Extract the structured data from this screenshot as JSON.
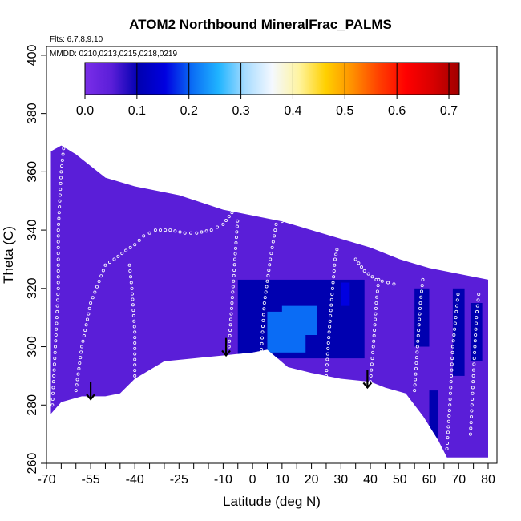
{
  "chart_data": {
    "type": "heatmap",
    "title": "ATOM2 Northbound MineralFrac_PALMS",
    "flights_note": "Flts: 6,7,8,9,10",
    "dates_note": "MMDD: 0210,0213,0215,0218,0219",
    "xlabel": "Latitude (deg N)",
    "ylabel": "Theta (C)",
    "xlim": [
      -70,
      83
    ],
    "ylim": [
      260,
      403
    ],
    "x_major_ticks": [
      -70,
      -55,
      -40,
      -25,
      -10,
      0,
      10,
      20,
      30,
      40,
      50,
      60,
      70,
      80
    ],
    "x_tick_labels": [
      "-70",
      "-55",
      "-40",
      "-25",
      "-10",
      "0",
      "10",
      "20",
      "30",
      "40",
      "50",
      "60",
      "70",
      "80"
    ],
    "x_minor_ticks": [
      -65,
      -60,
      -50,
      -45,
      -35,
      -30,
      -20,
      -15,
      -5,
      5,
      15,
      25,
      35,
      45,
      55,
      65,
      75
    ],
    "y_ticks": [
      260,
      280,
      300,
      320,
      340,
      360,
      380,
      400
    ],
    "y_tick_labels": [
      "260",
      "280",
      "300",
      "320",
      "340",
      "360",
      "380",
      "400"
    ],
    "colorbar": {
      "min": 0.0,
      "max": 0.72,
      "ticks": [
        0.0,
        0.1,
        0.2,
        0.3,
        0.4,
        0.5,
        0.6,
        0.7
      ],
      "tick_labels": [
        "0.0",
        "0.1",
        "0.2",
        "0.3",
        "0.4",
        "0.5",
        "0.6",
        "0.7"
      ],
      "colors": [
        "#7a2ee8",
        "#5a1ed8",
        "#0000b0",
        "#0000e0",
        "#0a6cf5",
        "#20b4ff",
        "#a8dcff",
        "#f4f8ff",
        "#fff4a0",
        "#ffd000",
        "#ff9000",
        "#ff4000",
        "#ff0000",
        "#d80000",
        "#a00000"
      ]
    },
    "background_value": 0.05,
    "coverage_top": [
      [
        -68.5,
        367
      ],
      [
        -65,
        369
      ],
      [
        -60,
        366
      ],
      [
        -50,
        358
      ],
      [
        -40,
        355
      ],
      [
        -25,
        352
      ],
      [
        -10,
        347
      ],
      [
        0,
        345
      ],
      [
        10,
        343
      ],
      [
        20,
        340
      ],
      [
        30,
        337
      ],
      [
        40,
        334
      ],
      [
        50,
        330
      ],
      [
        60,
        327
      ],
      [
        70,
        325
      ],
      [
        80,
        323
      ]
    ],
    "coverage_bottom": [
      [
        -68.5,
        277
      ],
      [
        -65,
        281
      ],
      [
        -58,
        283
      ],
      [
        -50,
        283
      ],
      [
        -45,
        284
      ],
      [
        -40,
        289
      ],
      [
        -30,
        295
      ],
      [
        -20,
        296
      ],
      [
        -10,
        297
      ],
      [
        0,
        298
      ],
      [
        5,
        299
      ],
      [
        12,
        293
      ],
      [
        20,
        291
      ],
      [
        30,
        289
      ],
      [
        40,
        288
      ],
      [
        45,
        286
      ],
      [
        52,
        284
      ],
      [
        58,
        276
      ],
      [
        63,
        268
      ],
      [
        66,
        262
      ],
      [
        80,
        262
      ],
      [
        80,
        323
      ]
    ],
    "enhanced_regions": [
      {
        "lat": [
          -5,
          38
        ],
        "theta": [
          296,
          323
        ],
        "value": 0.1
      },
      {
        "lat": [
          42,
          78
        ],
        "theta": [
          288,
          322
        ],
        "value": 0.09
      },
      {
        "lat": [
          5,
          18
        ],
        "theta": [
          298,
          312
        ],
        "value": 0.2
      },
      {
        "lat": [
          10,
          22
        ],
        "theta": [
          304,
          314
        ],
        "value": 0.22
      },
      {
        "lat": [
          30,
          33
        ],
        "theta": [
          314,
          322
        ],
        "value": 0.19
      },
      {
        "lat": [
          55,
          60
        ],
        "theta": [
          300,
          320
        ],
        "value": 0.14
      },
      {
        "lat": [
          60,
          63
        ],
        "theta": [
          268,
          285
        ],
        "value": 0.13
      },
      {
        "lat": [
          -58,
          -48
        ],
        "theta": [
          300,
          315
        ],
        "value": 0.08
      },
      {
        "lat": [
          -68,
          -62
        ],
        "theta": [
          330,
          368
        ],
        "value": 0.09
      },
      {
        "lat": [
          68,
          72
        ],
        "theta": [
          290,
          320
        ],
        "value": 0.1
      },
      {
        "lat": [
          74,
          78
        ],
        "theta": [
          295,
          315
        ],
        "value": 0.12
      }
    ],
    "arrows": [
      {
        "lat": -55,
        "theta_from": 288,
        "theta_to": 282
      },
      {
        "lat": -9,
        "theta_from": 303,
        "theta_to": 297
      },
      {
        "lat": 39,
        "theta_from": 292,
        "theta_to": 286
      }
    ],
    "flight_tracks": [
      [
        [
          -68,
          280
        ],
        [
          -67,
          300
        ],
        [
          -66,
          320
        ],
        [
          -66,
          340
        ],
        [
          -65,
          360
        ],
        [
          -64,
          370
        ]
      ],
      [
        [
          -60,
          285
        ],
        [
          -58,
          300
        ],
        [
          -55,
          315
        ],
        [
          -50,
          328
        ],
        [
          -47,
          330
        ],
        [
          -43,
          333
        ],
        [
          -40,
          335
        ],
        [
          -37,
          338
        ],
        [
          -33,
          340
        ],
        [
          -28,
          340
        ],
        [
          -23,
          339
        ],
        [
          -19,
          339
        ],
        [
          -14,
          340
        ],
        [
          -10,
          342
        ],
        [
          -7,
          346
        ],
        [
          -4,
          348
        ]
      ],
      [
        [
          -40,
          290
        ],
        [
          -40,
          305
        ],
        [
          -41,
          320
        ],
        [
          -42,
          330
        ]
      ],
      [
        [
          -8,
          300
        ],
        [
          -7,
          315
        ],
        [
          -6,
          330
        ],
        [
          -5,
          345
        ]
      ],
      [
        [
          3,
          299
        ],
        [
          4,
          315
        ],
        [
          6,
          330
        ],
        [
          8,
          342
        ],
        [
          12,
          344
        ],
        [
          17,
          344
        ]
      ],
      [
        [
          25,
          290
        ],
        [
          26,
          305
        ],
        [
          27,
          318
        ],
        [
          28,
          330
        ],
        [
          29,
          335
        ]
      ],
      [
        [
          35,
          330
        ],
        [
          38,
          326
        ],
        [
          42,
          323
        ],
        [
          46,
          322
        ],
        [
          50,
          321
        ]
      ],
      [
        [
          40,
          288
        ],
        [
          41,
          300
        ],
        [
          42,
          315
        ],
        [
          43,
          325
        ]
      ],
      [
        [
          55,
          285
        ],
        [
          56,
          300
        ],
        [
          57,
          315
        ],
        [
          58,
          325
        ]
      ],
      [
        [
          66,
          265
        ],
        [
          67,
          280
        ],
        [
          68,
          300
        ],
        [
          70,
          320
        ]
      ],
      [
        [
          74,
          270
        ],
        [
          75,
          290
        ],
        [
          76,
          310
        ],
        [
          77,
          320
        ]
      ]
    ]
  }
}
